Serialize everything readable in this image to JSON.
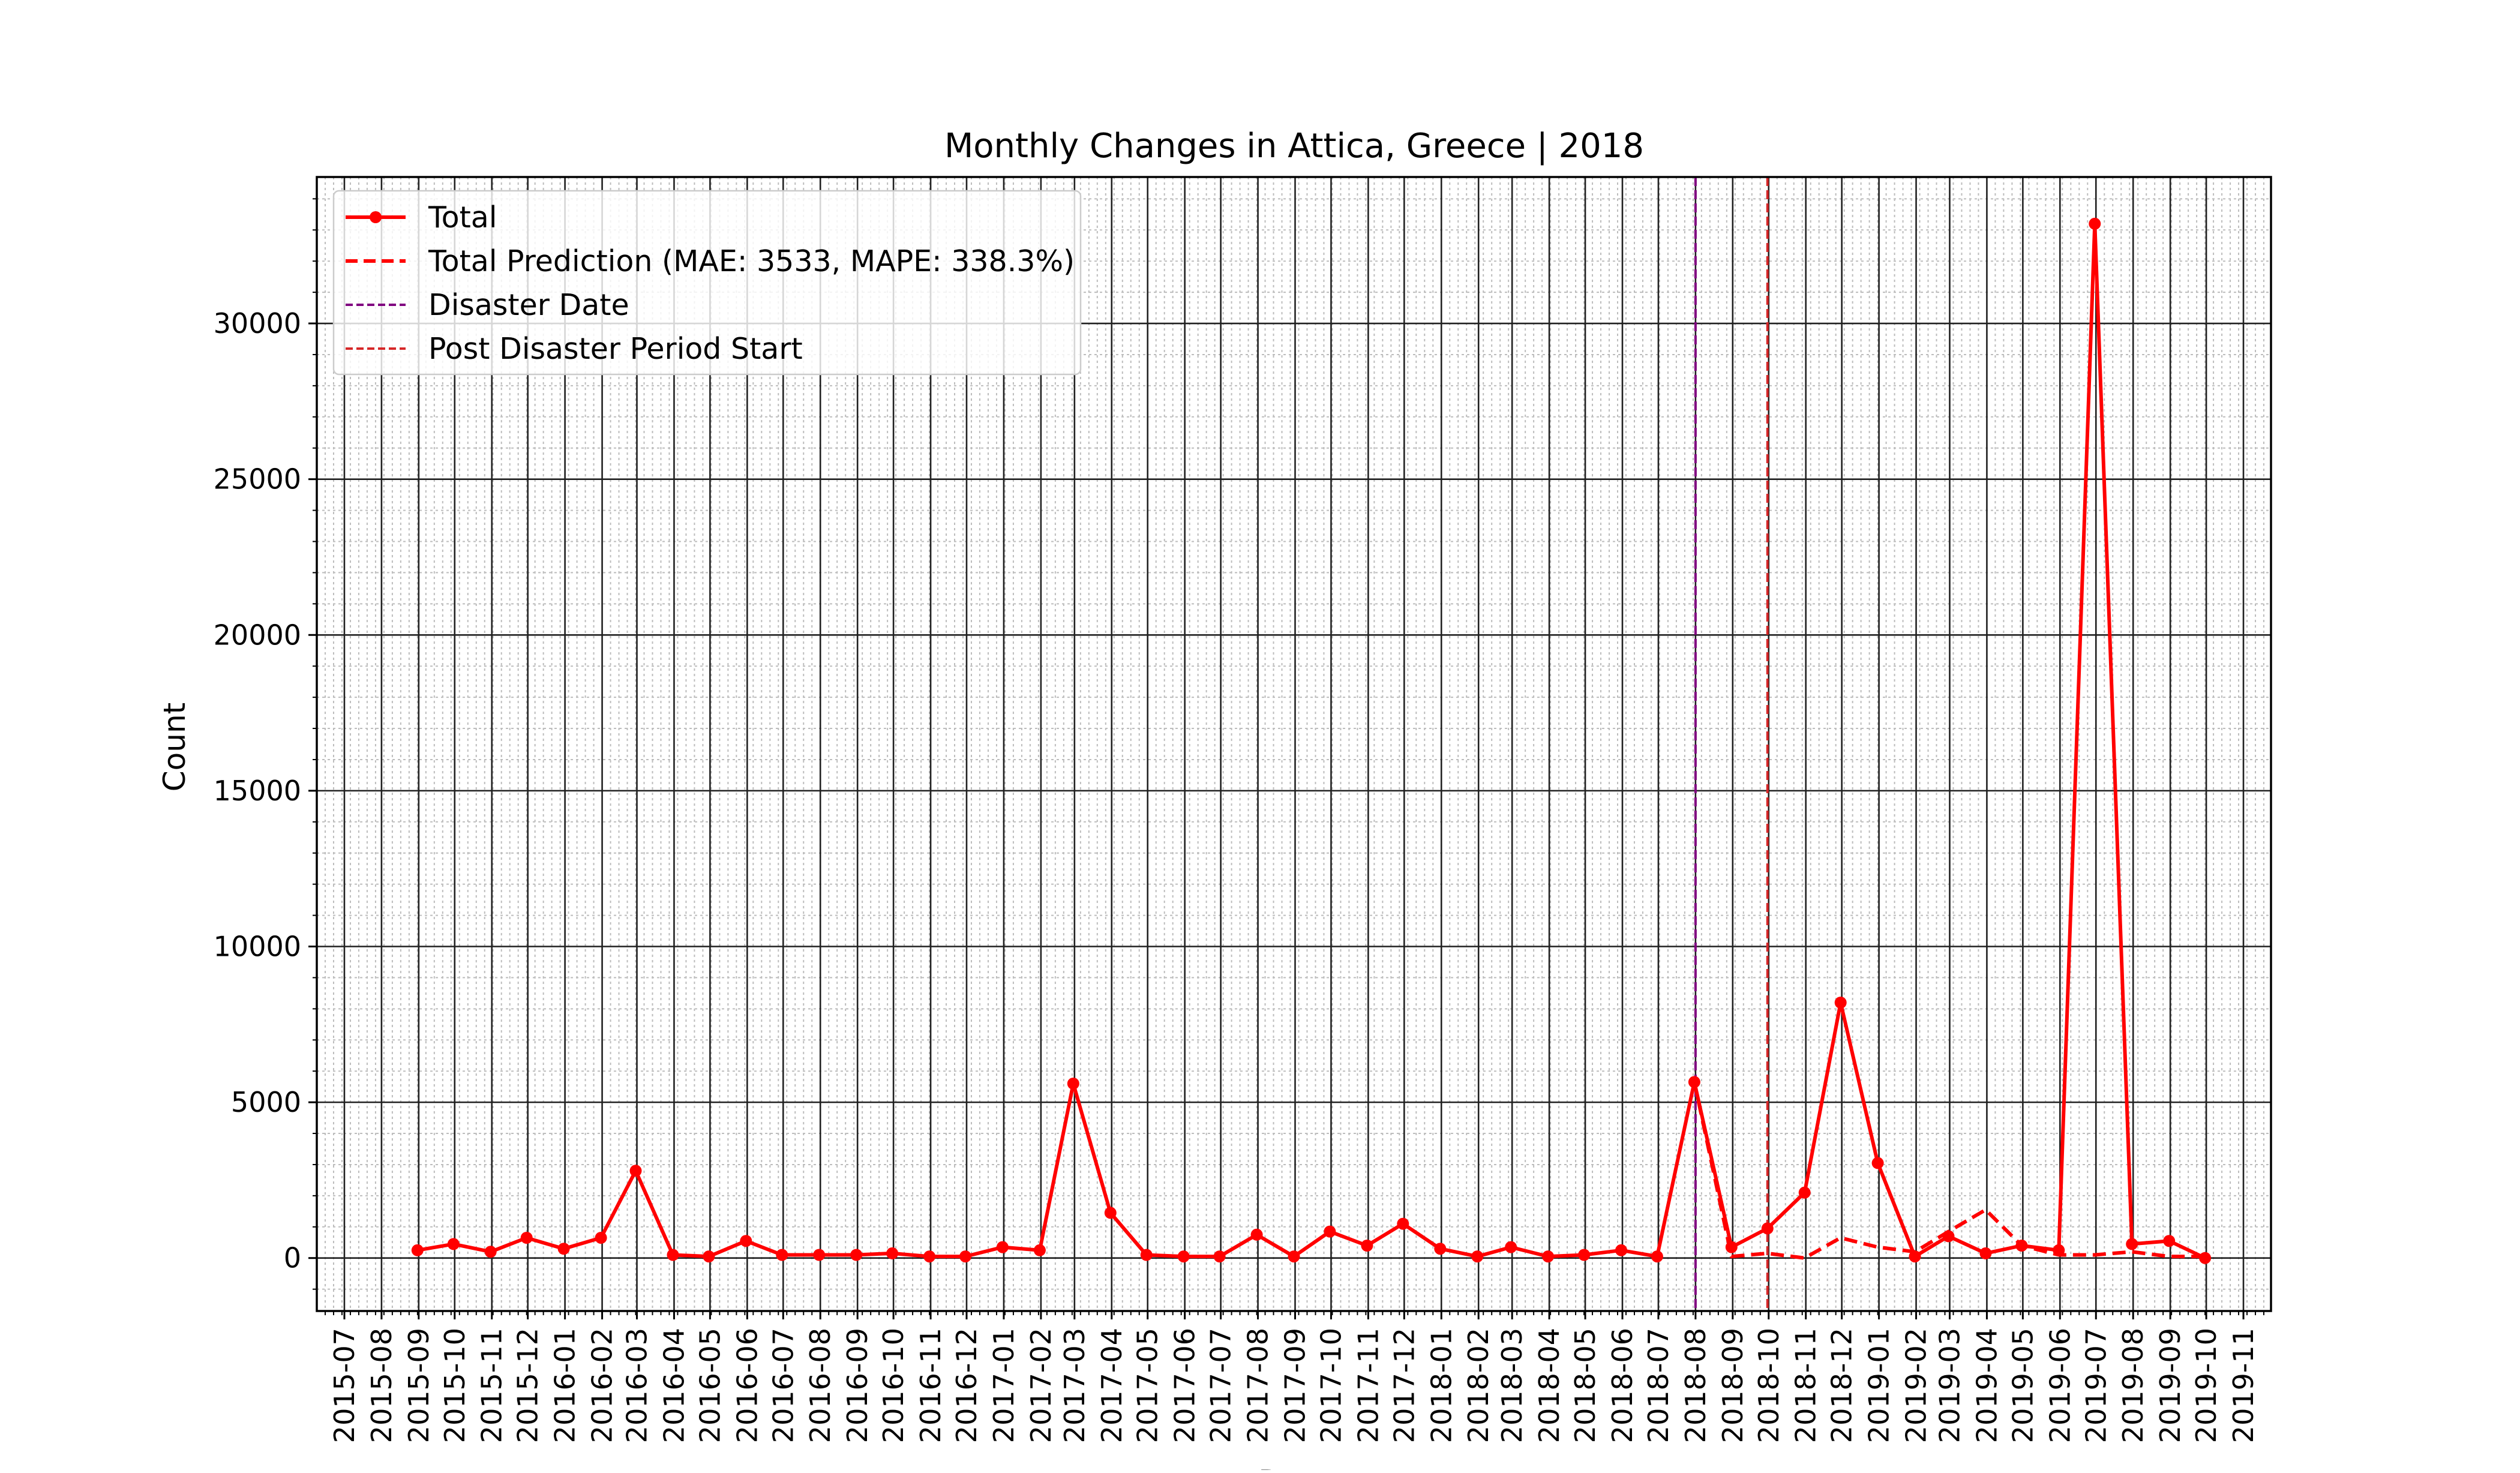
{
  "chart_data": {
    "type": "line",
    "title": "Monthly Changes in Attica, Greece | 2018",
    "xlabel": "Date",
    "ylabel": "Count",
    "ylim": [
      -1700,
      34700
    ],
    "xlim": [
      "2015-06-08",
      "2019-11-24"
    ],
    "yticks": [
      0,
      5000,
      10000,
      15000,
      20000,
      25000,
      30000
    ],
    "yminor_step": 1000,
    "xticks": [
      "2015-07",
      "2015-08",
      "2015-09",
      "2015-10",
      "2015-11",
      "2015-12",
      "2016-01",
      "2016-02",
      "2016-03",
      "2016-04",
      "2016-05",
      "2016-06",
      "2016-07",
      "2016-08",
      "2016-09",
      "2016-10",
      "2016-11",
      "2016-12",
      "2017-01",
      "2017-02",
      "2017-03",
      "2017-04",
      "2017-05",
      "2017-06",
      "2017-07",
      "2017-08",
      "2017-09",
      "2017-10",
      "2017-11",
      "2017-12",
      "2018-01",
      "2018-02",
      "2018-03",
      "2018-04",
      "2018-05",
      "2018-06",
      "2018-07",
      "2018-08",
      "2018-09",
      "2018-10",
      "2018-11",
      "2018-12",
      "2019-01",
      "2019-02",
      "2019-03",
      "2019-04",
      "2019-05",
      "2019-06",
      "2019-07",
      "2019-08",
      "2019-09",
      "2019-10",
      "2019-11"
    ],
    "grid": true,
    "legend_position": "top-left",
    "colors": {
      "total": "#ff0000",
      "disaster": "#800080",
      "post": "#d62728"
    },
    "series": [
      {
        "name": "Total",
        "style": "solid-marker",
        "x": [
          "2015-08-31",
          "2015-09-30",
          "2015-10-31",
          "2015-11-30",
          "2015-12-31",
          "2016-01-31",
          "2016-02-29",
          "2016-03-31",
          "2016-04-30",
          "2016-05-31",
          "2016-06-30",
          "2016-07-31",
          "2016-08-31",
          "2016-09-30",
          "2016-10-31",
          "2016-11-30",
          "2016-12-31",
          "2017-01-31",
          "2017-02-28",
          "2017-03-31",
          "2017-04-30",
          "2017-05-31",
          "2017-06-30",
          "2017-07-31",
          "2017-08-31",
          "2017-09-30",
          "2017-10-31",
          "2017-11-30",
          "2017-12-31",
          "2018-01-31",
          "2018-02-28",
          "2018-03-31",
          "2018-04-30",
          "2018-05-31",
          "2018-06-30",
          "2018-07-31",
          "2018-08-31",
          "2018-09-30",
          "2018-10-31",
          "2018-11-30",
          "2018-12-31",
          "2019-01-31",
          "2019-02-28",
          "2019-03-31",
          "2019-04-30",
          "2019-05-31",
          "2019-06-30",
          "2019-07-31",
          "2019-08-31",
          "2019-09-30"
        ],
        "y": [
          250,
          450,
          200,
          650,
          300,
          650,
          2800,
          100,
          50,
          550,
          100,
          100,
          100,
          150,
          50,
          50,
          350,
          250,
          5600,
          1450,
          100,
          50,
          50,
          750,
          50,
          850,
          400,
          1100,
          300,
          50,
          350,
          50,
          100,
          250,
          50,
          5650,
          350,
          950,
          2100,
          8200,
          3050,
          50,
          700,
          150,
          400,
          250,
          33200,
          450,
          550,
          0
        ]
      },
      {
        "name": "Total Prediction (MAE: 3533, MAPE: 338.3%)",
        "style": "dashed",
        "x": [
          "2018-07-31",
          "2018-08-31",
          "2018-09-30",
          "2018-10-31",
          "2018-11-30",
          "2018-12-31",
          "2019-01-31",
          "2019-02-28",
          "2019-03-31",
          "2019-04-30",
          "2019-05-31",
          "2019-06-30",
          "2019-07-31",
          "2019-08-31",
          "2019-09-30"
        ],
        "y": [
          5650,
          50,
          150,
          0,
          650,
          350,
          200,
          850,
          1550,
          400,
          100,
          100,
          200,
          50,
          50
        ]
      }
    ],
    "vlines": [
      {
        "name": "Disaster Date",
        "x": "2018-08-01"
      },
      {
        "name": "Post Disaster Period Start",
        "x": "2018-09-30"
      }
    ]
  }
}
